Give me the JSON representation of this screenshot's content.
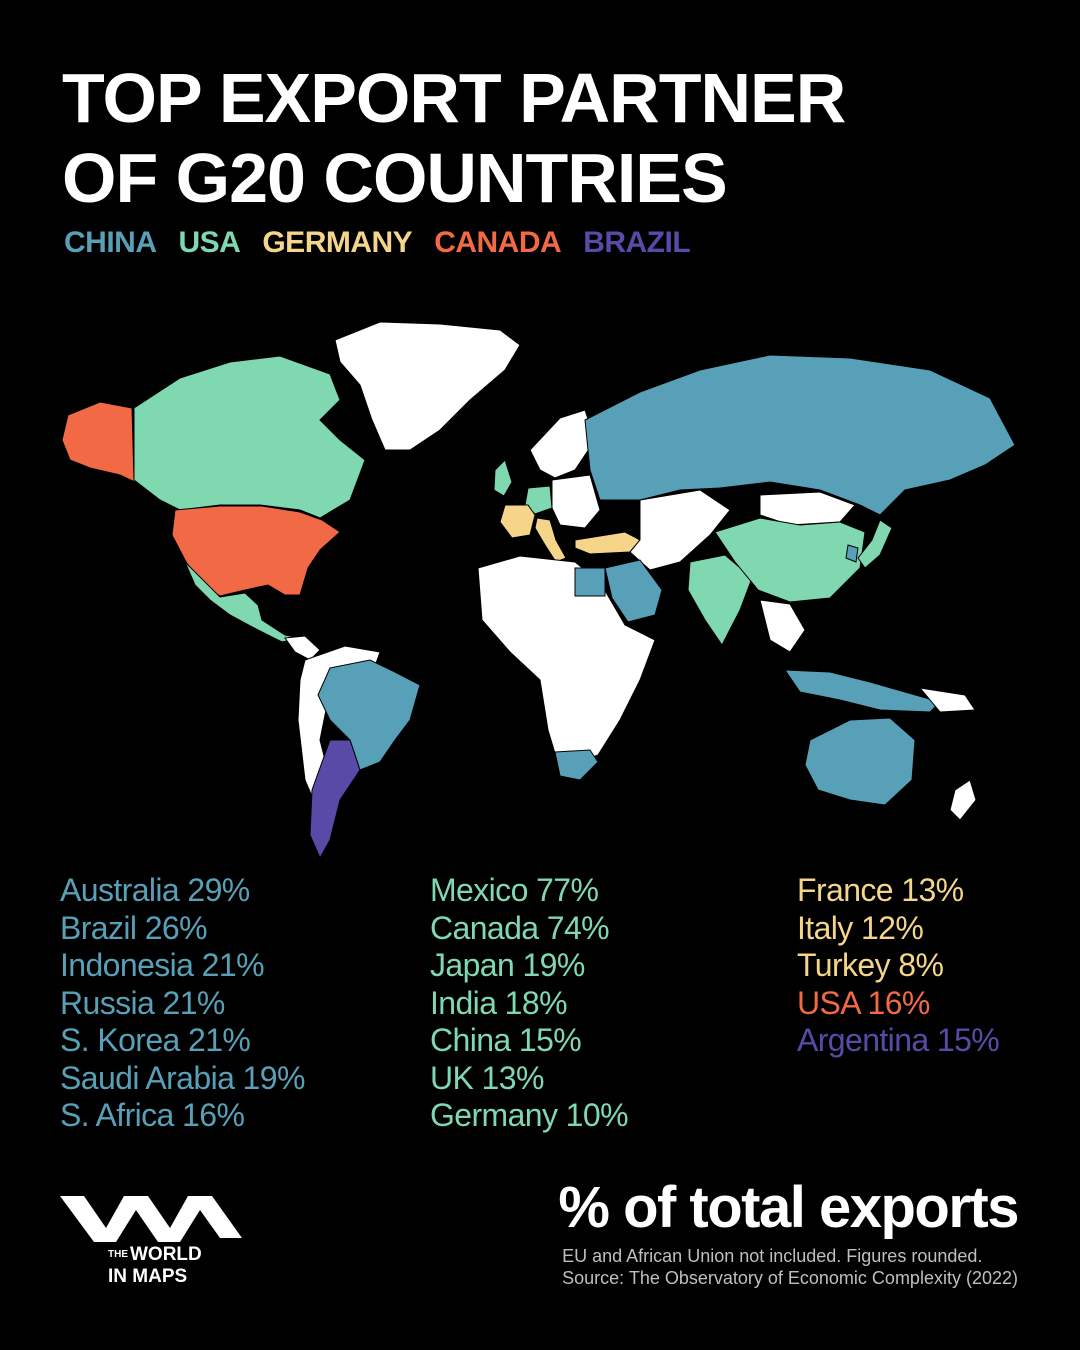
{
  "title": {
    "line1": "TOP EXPORT PARTNER",
    "line2": "OF G20 COUNTRIES"
  },
  "colors": {
    "china": "#57a0b8",
    "usa": "#7fd8b0",
    "germany": "#f4d58a",
    "canada": "#f26a45",
    "brazil": "#5a4aa8",
    "other": "#ffffff",
    "background": "#000000"
  },
  "legend": [
    {
      "label": "CHINA",
      "color": "#57a0b8"
    },
    {
      "label": "USA",
      "color": "#7fd8b0"
    },
    {
      "label": "GERMANY",
      "color": "#f4d58a"
    },
    {
      "label": "CANADA",
      "color": "#f26a45"
    },
    {
      "label": "BRAZIL",
      "color": "#5a4aa8"
    }
  ],
  "map_regions": [
    {
      "name": "Alaska",
      "partner": "canada"
    },
    {
      "name": "Canada",
      "partner": "usa"
    },
    {
      "name": "USA",
      "partner": "canada"
    },
    {
      "name": "Mexico",
      "partner": "usa"
    },
    {
      "name": "Brazil",
      "partner": "china"
    },
    {
      "name": "Argentina",
      "partner": "brazil"
    },
    {
      "name": "UK",
      "partner": "usa"
    },
    {
      "name": "Germany",
      "partner": "usa"
    },
    {
      "name": "France",
      "partner": "germany"
    },
    {
      "name": "Italy",
      "partner": "germany"
    },
    {
      "name": "Turkey",
      "partner": "germany"
    },
    {
      "name": "Russia",
      "partner": "china"
    },
    {
      "name": "Saudi Arabia",
      "partner": "china"
    },
    {
      "name": "India",
      "partner": "usa"
    },
    {
      "name": "China",
      "partner": "usa"
    },
    {
      "name": "Japan",
      "partner": "usa"
    },
    {
      "name": "S. Korea",
      "partner": "china"
    },
    {
      "name": "Indonesia",
      "partner": "china"
    },
    {
      "name": "Australia",
      "partner": "china"
    },
    {
      "name": "S. Africa",
      "partner": "china"
    }
  ],
  "columns": [
    [
      {
        "text": "Australia 29%",
        "color": "#57a0b8"
      },
      {
        "text": "Brazil 26%",
        "color": "#57a0b8"
      },
      {
        "text": "Indonesia 21%",
        "color": "#57a0b8"
      },
      {
        "text": "Russia 21%",
        "color": "#57a0b8"
      },
      {
        "text": "S. Korea 21%",
        "color": "#57a0b8"
      },
      {
        "text": "Saudi Arabia 19%",
        "color": "#57a0b8"
      },
      {
        "text": "S. Africa 16%",
        "color": "#57a0b8"
      }
    ],
    [
      {
        "text": "Mexico 77%",
        "color": "#7fd8b0"
      },
      {
        "text": "Canada 74%",
        "color": "#7fd8b0"
      },
      {
        "text": "Japan 19%",
        "color": "#7fd8b0"
      },
      {
        "text": "India 18%",
        "color": "#7fd8b0"
      },
      {
        "text": "China 15%",
        "color": "#7fd8b0"
      },
      {
        "text": "UK 13%",
        "color": "#7fd8b0"
      },
      {
        "text": "Germany 10%",
        "color": "#7fd8b0"
      }
    ],
    [
      {
        "text": "France 13%",
        "color": "#f4d58a"
      },
      {
        "text": "Italy 12%",
        "color": "#f4d58a"
      },
      {
        "text": "Turkey 8%",
        "color": "#f4d58a"
      },
      {
        "text": "USA 16%",
        "color": "#f26a45"
      },
      {
        "text": "Argentina 15%",
        "color": "#5a4aa8"
      }
    ]
  ],
  "brand": {
    "the": "THE",
    "line1": "WORLD",
    "line2": "IN MAPS",
    "logo_icon": "wm-logo-icon"
  },
  "subtitle": "% of total exports",
  "note": {
    "line1": "EU and African Union not included. Figures rounded.",
    "line2": "Source: The Observatory of Economic Complexity (2022)"
  }
}
